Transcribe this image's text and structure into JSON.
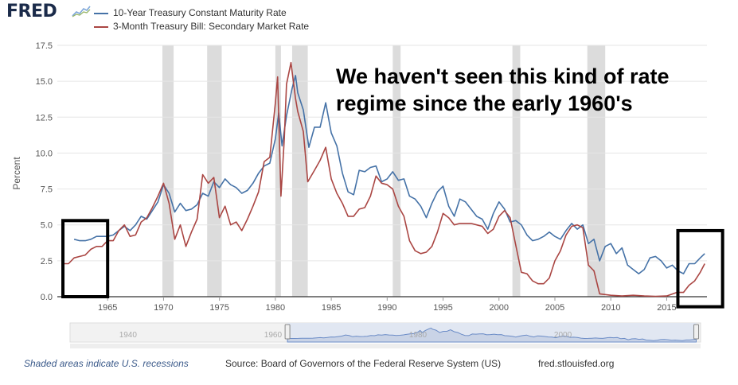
{
  "header": {
    "logo": "FRED",
    "legend": [
      {
        "label": "10-Year Treasury Constant Maturity Rate",
        "color": "#4572a7"
      },
      {
        "label": "3-Month Treasury Bill: Secondary Market Rate",
        "color": "#aa4643"
      }
    ]
  },
  "annotation": "We haven't seen this kind of rate regime since the early 1960's",
  "footer": {
    "note": "Shaded areas indicate U.S. recessions",
    "source": "Source: Board of Governors of the Federal Reserve System (US)",
    "url": "fred.stlouisfed.org"
  },
  "colors": {
    "series_10y": "#4572a7",
    "series_3m": "#aa4643",
    "recession": "#dcdcdc",
    "grid": "#e6e6e6",
    "navigator_fill": "#c9d3e6",
    "navigator_line": "#6b8cc7"
  },
  "chart_data": {
    "type": "line",
    "title": "",
    "xlabel": "",
    "ylabel": "Percent",
    "xlim": [
      1960.5,
      2018.6
    ],
    "ylim": [
      0,
      17.5
    ],
    "yticks": [
      "0.0",
      "2.5",
      "5.0",
      "7.5",
      "10.0",
      "12.5",
      "15.0",
      "17.5"
    ],
    "xticks": [
      "1965",
      "1970",
      "1975",
      "1980",
      "1985",
      "1990",
      "1995",
      "2000",
      "2005",
      "2010",
      "2015"
    ],
    "navigator_ticks": [
      "1940",
      "1960",
      "1980",
      "2000"
    ],
    "grid": true,
    "legend": "top-left",
    "recessions": [
      [
        1969.9,
        1970.9
      ],
      [
        1973.9,
        1975.2
      ],
      [
        1980.0,
        1980.5
      ],
      [
        1981.5,
        1982.9
      ],
      [
        1990.5,
        1991.2
      ],
      [
        2001.2,
        2001.9
      ],
      [
        2007.9,
        2009.5
      ]
    ],
    "highlight_boxes": [
      {
        "x": [
          1961.0,
          1965.0
        ],
        "y": [
          0.0,
          5.3
        ]
      },
      {
        "x": [
          2016.0,
          2020.0
        ],
        "y": [
          -0.7,
          4.6
        ]
      }
    ],
    "series": [
      {
        "name": "10-Year Treasury Constant Maturity Rate",
        "x": [
          1962.0,
          1962.5,
          1963.0,
          1963.5,
          1964.0,
          1964.5,
          1965.0,
          1965.5,
          1966.0,
          1966.5,
          1967.0,
          1967.5,
          1968.0,
          1968.5,
          1969.0,
          1969.5,
          1970.0,
          1970.5,
          1971.0,
          1971.5,
          1972.0,
          1972.5,
          1973.0,
          1973.5,
          1974.0,
          1974.5,
          1975.0,
          1975.5,
          1976.0,
          1976.5,
          1977.0,
          1977.5,
          1978.0,
          1978.5,
          1979.0,
          1979.5,
          1980.0,
          1980.3,
          1980.6,
          1981.0,
          1981.5,
          1981.8,
          1982.0,
          1982.5,
          1983.0,
          1983.5,
          1984.0,
          1984.5,
          1985.0,
          1985.5,
          1986.0,
          1986.5,
          1987.0,
          1987.5,
          1988.0,
          1988.5,
          1989.0,
          1989.5,
          1990.0,
          1990.5,
          1991.0,
          1991.5,
          1992.0,
          1992.5,
          1993.0,
          1993.5,
          1994.0,
          1994.5,
          1995.0,
          1995.5,
          1996.0,
          1996.5,
          1997.0,
          1997.5,
          1998.0,
          1998.5,
          1999.0,
          1999.5,
          2000.0,
          2000.5,
          2001.0,
          2001.5,
          2002.0,
          2002.5,
          2003.0,
          2003.5,
          2004.0,
          2004.5,
          2005.0,
          2005.5,
          2006.0,
          2006.5,
          2007.0,
          2007.5,
          2008.0,
          2008.5,
          2009.0,
          2009.5,
          2010.0,
          2010.5,
          2011.0,
          2011.5,
          2012.0,
          2012.5,
          2013.0,
          2013.5,
          2014.0,
          2014.5,
          2015.0,
          2015.5,
          2016.0,
          2016.5,
          2017.0,
          2017.5,
          2018.0,
          2018.4
        ],
        "values": [
          4.0,
          3.9,
          3.9,
          4.0,
          4.2,
          4.2,
          4.2,
          4.3,
          4.6,
          4.9,
          4.6,
          5.0,
          5.6,
          5.4,
          6.0,
          6.6,
          7.8,
          7.2,
          5.9,
          6.5,
          6.0,
          6.1,
          6.4,
          7.2,
          7.0,
          8.0,
          7.6,
          8.2,
          7.8,
          7.6,
          7.2,
          7.4,
          7.9,
          8.6,
          9.1,
          9.3,
          11.0,
          12.8,
          10.5,
          12.6,
          14.5,
          15.4,
          14.2,
          13.0,
          10.4,
          11.8,
          11.8,
          13.5,
          11.4,
          10.5,
          8.6,
          7.3,
          7.1,
          8.8,
          8.7,
          9.0,
          9.1,
          8.0,
          8.2,
          8.7,
          8.1,
          8.2,
          7.0,
          6.8,
          6.3,
          5.5,
          6.5,
          7.3,
          7.7,
          6.3,
          5.6,
          6.8,
          6.6,
          6.1,
          5.6,
          5.4,
          4.7,
          5.8,
          6.6,
          6.1,
          5.2,
          5.3,
          5.0,
          4.3,
          3.9,
          4.0,
          4.2,
          4.5,
          4.2,
          4.0,
          4.6,
          5.1,
          4.7,
          5.0,
          3.7,
          4.0,
          2.5,
          3.5,
          3.7,
          3.0,
          3.4,
          2.2,
          1.9,
          1.6,
          1.9,
          2.7,
          2.8,
          2.5,
          2.0,
          2.2,
          1.8,
          1.6,
          2.3,
          2.3,
          2.7,
          3.0
        ]
      },
      {
        "name": "3-Month Treasury Bill: Secondary Market Rate",
        "x": [
          1961.0,
          1961.5,
          1962.0,
          1962.5,
          1963.0,
          1963.5,
          1964.0,
          1964.5,
          1965.0,
          1965.5,
          1966.0,
          1966.5,
          1967.0,
          1967.5,
          1968.0,
          1968.5,
          1969.0,
          1969.5,
          1970.0,
          1970.5,
          1971.0,
          1971.5,
          1972.0,
          1972.5,
          1973.0,
          1973.5,
          1974.0,
          1974.5,
          1975.0,
          1975.5,
          1976.0,
          1976.5,
          1977.0,
          1977.5,
          1978.0,
          1978.5,
          1979.0,
          1979.5,
          1980.0,
          1980.2,
          1980.5,
          1980.8,
          1981.0,
          1981.4,
          1981.8,
          1982.0,
          1982.5,
          1982.9,
          1983.5,
          1984.0,
          1984.5,
          1985.0,
          1985.5,
          1986.0,
          1986.5,
          1987.0,
          1987.5,
          1988.0,
          1988.5,
          1989.0,
          1989.5,
          1990.0,
          1990.5,
          1991.0,
          1991.5,
          1992.0,
          1992.5,
          1993.0,
          1993.5,
          1994.0,
          1994.5,
          1995.0,
          1995.5,
          1996.0,
          1996.5,
          1997.0,
          1997.5,
          1998.0,
          1998.5,
          1999.0,
          1999.5,
          2000.0,
          2000.5,
          2001.0,
          2001.5,
          2002.0,
          2002.5,
          2003.0,
          2003.5,
          2004.0,
          2004.5,
          2005.0,
          2005.5,
          2006.0,
          2006.5,
          2007.0,
          2007.5,
          2008.0,
          2008.5,
          2009.0,
          2010.0,
          2011.0,
          2012.0,
          2013.0,
          2014.0,
          2015.0,
          2015.9,
          2016.5,
          2017.0,
          2017.5,
          2018.0,
          2018.4
        ],
        "values": [
          2.3,
          2.3,
          2.7,
          2.8,
          2.9,
          3.3,
          3.5,
          3.5,
          3.9,
          3.9,
          4.6,
          5.0,
          4.2,
          4.3,
          5.2,
          5.5,
          6.2,
          7.0,
          7.9,
          6.5,
          4.0,
          5.0,
          3.5,
          4.5,
          5.4,
          8.5,
          7.9,
          8.3,
          5.5,
          6.3,
          5.0,
          5.2,
          4.6,
          5.4,
          6.3,
          7.3,
          9.4,
          9.7,
          13.5,
          15.3,
          7.0,
          11.0,
          14.8,
          16.3,
          13.8,
          12.9,
          11.5,
          8.0,
          8.8,
          9.5,
          10.4,
          8.2,
          7.2,
          6.5,
          5.6,
          5.6,
          6.1,
          6.2,
          7.0,
          8.4,
          7.9,
          7.8,
          7.5,
          6.3,
          5.6,
          3.9,
          3.2,
          3.0,
          3.1,
          3.5,
          4.5,
          5.8,
          5.5,
          5.0,
          5.1,
          5.1,
          5.1,
          5.0,
          4.9,
          4.4,
          4.7,
          5.6,
          6.0,
          5.5,
          3.6,
          1.7,
          1.6,
          1.1,
          0.9,
          0.9,
          1.3,
          2.5,
          3.2,
          4.3,
          4.9,
          5.0,
          4.8,
          2.2,
          1.8,
          0.2,
          0.1,
          0.05,
          0.1,
          0.05,
          0.03,
          0.05,
          0.3,
          0.3,
          0.8,
          1.1,
          1.7,
          2.3
        ]
      }
    ]
  }
}
